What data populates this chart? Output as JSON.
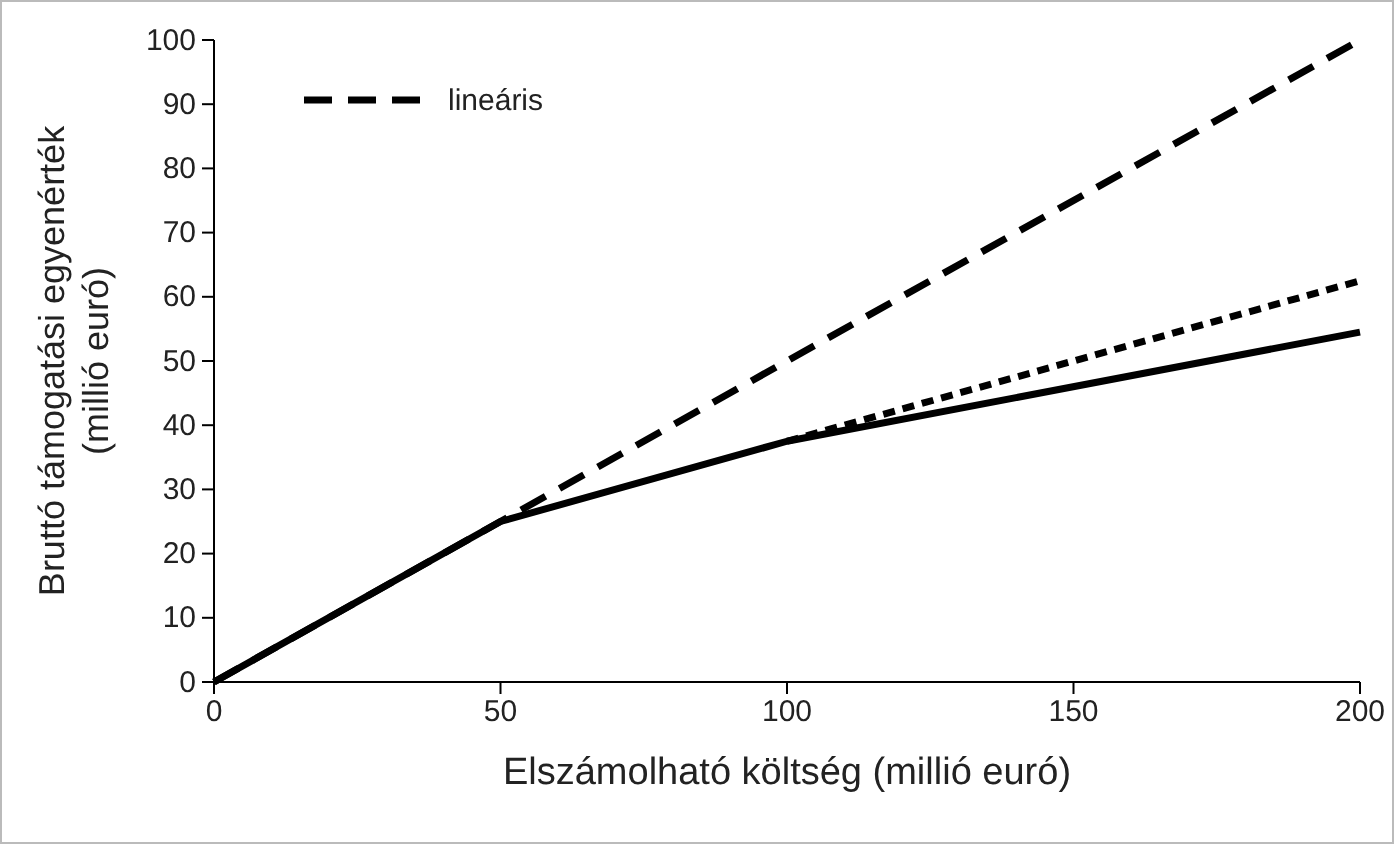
{
  "chart_data": {
    "type": "line",
    "xlabel": "Elszámolható költség (millió euró)",
    "ylabel": "Bruttó támogatási egyenérték (millió euró)",
    "xlim": [
      0,
      200
    ],
    "xticks": [
      0,
      50,
      100,
      150,
      200
    ],
    "ylim": [
      0,
      100
    ],
    "yticks": [
      0,
      10,
      20,
      30,
      40,
      50,
      60,
      70,
      80,
      90,
      100
    ],
    "legend": "top left",
    "grid": false,
    "marker": "none",
    "series": [
      {
        "color": "#000000",
        "line_style": "solid",
        "x": [
          0,
          50,
          100,
          200
        ],
        "values": [
          0,
          25,
          37.5,
          54.5
        ]
      },
      {
        "color": "#000000",
        "line_style": "dotted",
        "x": [
          100,
          200
        ],
        "values": [
          37.5,
          62.5
        ]
      },
      {
        "name": "lineáris",
        "color": "#000000",
        "line_style": "dashed",
        "x": [
          0,
          200
        ],
        "values": [
          0,
          100
        ]
      }
    ]
  }
}
